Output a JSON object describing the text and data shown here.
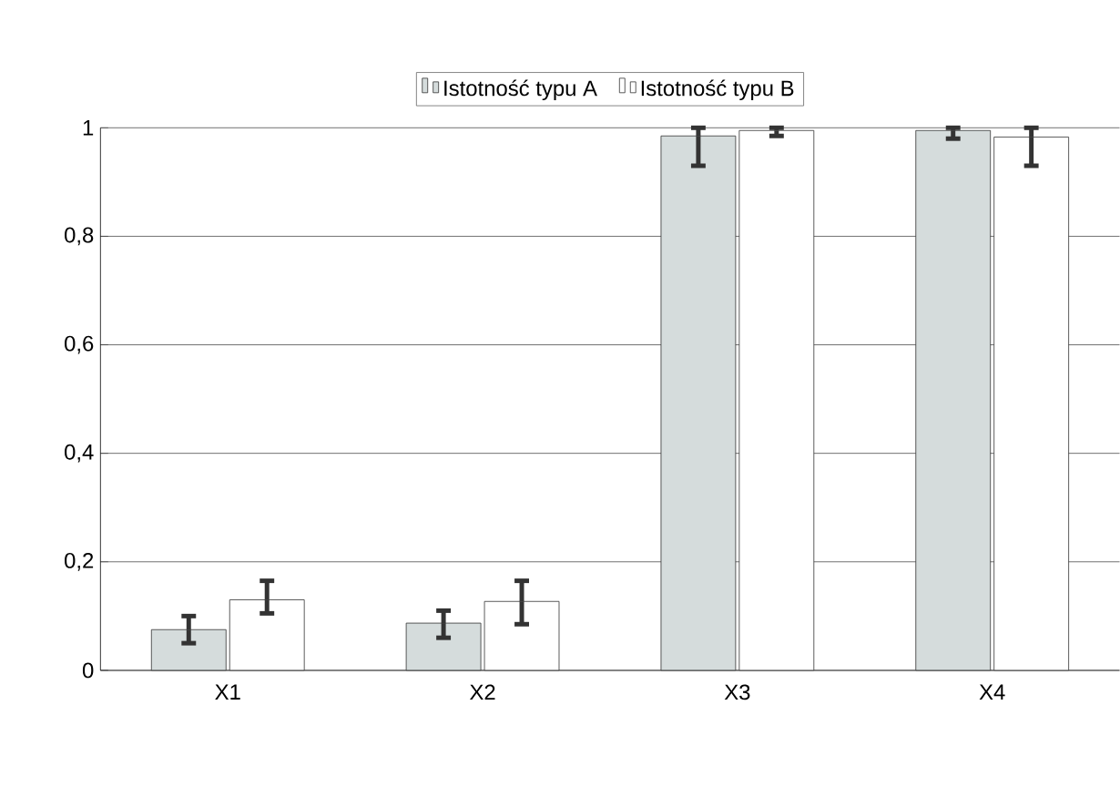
{
  "chart_data": {
    "type": "bar",
    "categories": [
      "X1",
      "X2",
      "X3",
      "X4"
    ],
    "series": [
      {
        "name": "Istotność typu A",
        "color": "#d5dcdc",
        "values": [
          0.075,
          0.087,
          0.985,
          0.995
        ],
        "errors": [
          [
            0.05,
            0.1
          ],
          [
            0.06,
            0.11
          ],
          [
            0.93,
            1.0
          ],
          [
            0.98,
            1.0
          ]
        ]
      },
      {
        "name": "Istotność typu B",
        "color": "#ffffff",
        "values": [
          0.13,
          0.127,
          0.995,
          0.983
        ],
        "errors": [
          [
            0.105,
            0.165
          ],
          [
            0.085,
            0.165
          ],
          [
            0.985,
            1.0
          ],
          [
            0.93,
            1.0
          ]
        ]
      }
    ],
    "ylim": [
      0,
      1
    ],
    "yticks": [
      0,
      {
        "value": 0.2,
        "label": "0,2"
      },
      {
        "value": 0.4,
        "label": "0,4"
      },
      {
        "value": 0.6,
        "label": "0,6"
      },
      {
        "value": 0.8,
        "label": "0,8"
      },
      1
    ],
    "grid": "y",
    "legend": "top"
  }
}
